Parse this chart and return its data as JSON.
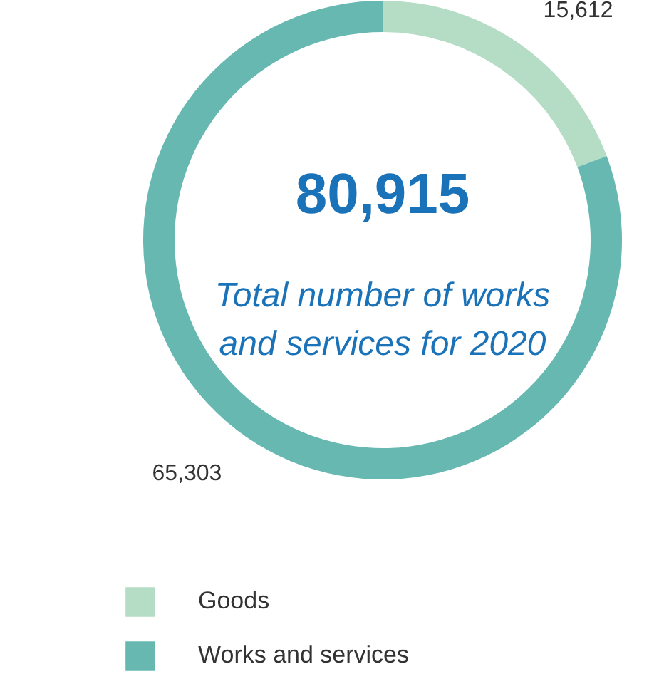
{
  "chart_data": {
    "type": "donut",
    "categories": [
      "Goods",
      "Works and services"
    ],
    "values": [
      15612,
      65303
    ],
    "colors": [
      "#b5dcc5",
      "#66b8b1"
    ],
    "value_labels": [
      "15,612",
      "65,303"
    ],
    "annotations": [
      "80,915",
      "Total number of works\nand services for 2020"
    ],
    "legend": "bottom left"
  }
}
